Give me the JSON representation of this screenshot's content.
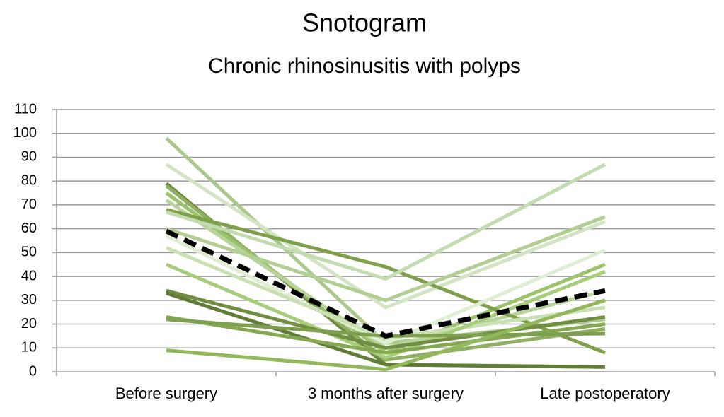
{
  "chart_data": {
    "type": "line",
    "title": "Snotogram",
    "subtitle": "Chronic rhinosinusitis with polyps",
    "categories": [
      "Before surgery",
      "3 months after surgery",
      "Late postoperatory"
    ],
    "ylim": [
      0,
      110
    ],
    "yticks": [
      0,
      10,
      20,
      30,
      40,
      50,
      60,
      70,
      80,
      90,
      100,
      110
    ],
    "grid": true,
    "series": [
      {
        "color": "#a9c98a",
        "values": [
          98,
          12,
          22
        ]
      },
      {
        "color": "#d3e4c2",
        "values": [
          87,
          27,
          63
        ]
      },
      {
        "color": "#6b8a3c",
        "values": [
          79,
          3,
          2
        ]
      },
      {
        "color": "#8fb062",
        "values": [
          78,
          5,
          18
        ]
      },
      {
        "color": "#9bc36a",
        "values": [
          75,
          8,
          45
        ]
      },
      {
        "color": "#b8d49a",
        "values": [
          72,
          10,
          34
        ]
      },
      {
        "color": "#7fa04a",
        "values": [
          68,
          44,
          8
        ]
      },
      {
        "color": "#c3dbb0",
        "values": [
          67,
          39,
          87
        ]
      },
      {
        "color": "#b2cf93",
        "values": [
          60,
          30,
          65
        ]
      },
      {
        "color": "#dfeed2",
        "values": [
          57,
          12,
          51
        ]
      },
      {
        "color": "#c9e0b3",
        "values": [
          52,
          14,
          27
        ]
      },
      {
        "color": "#a6cd7a",
        "values": [
          45,
          6,
          42
        ]
      },
      {
        "color": "#6f8e42",
        "values": [
          34,
          10,
          23
        ]
      },
      {
        "color": "#5f7d35",
        "values": [
          33,
          3,
          2
        ]
      },
      {
        "color": "#84a951",
        "values": [
          23,
          8,
          20
        ]
      },
      {
        "color": "#7e9f4f",
        "values": [
          22,
          15,
          16
        ]
      },
      {
        "color": "#93b85c",
        "values": [
          9,
          1,
          30
        ]
      },
      {
        "color": "#000000",
        "dashed": true,
        "values": [
          59,
          15,
          34
        ]
      }
    ]
  }
}
